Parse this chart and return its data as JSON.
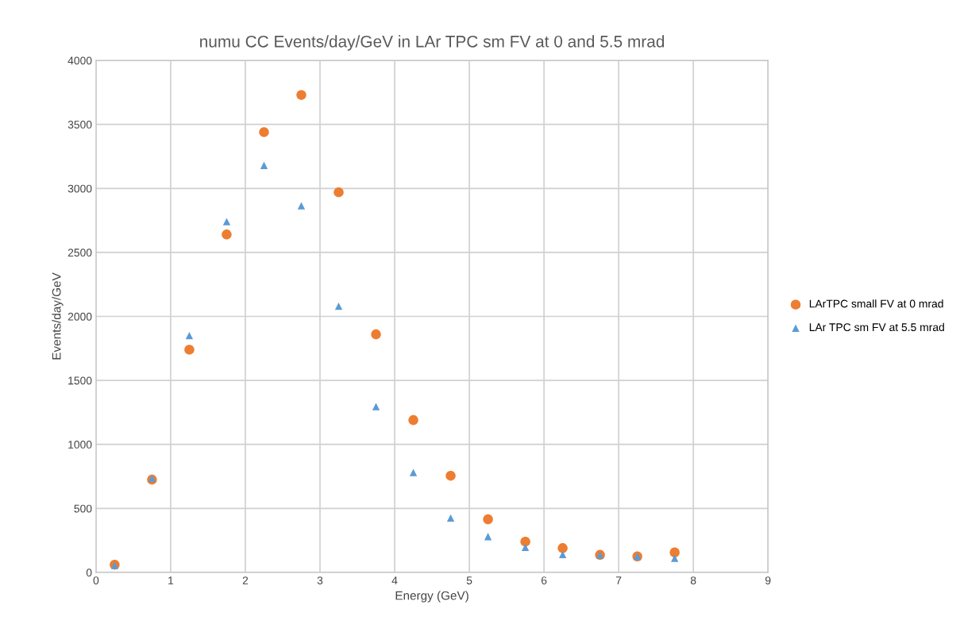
{
  "chart_data": {
    "type": "scatter",
    "title": "numu CC Events/day/GeV in LAr TPC sm FV at 0 and 5.5 mrad",
    "xlabel": "Energy (GeV)",
    "ylabel": "Events/day/GeV",
    "x": [
      0.25,
      0.75,
      1.25,
      1.75,
      2.25,
      2.75,
      3.25,
      3.75,
      4.25,
      4.75,
      5.25,
      5.75,
      6.25,
      6.75,
      7.25,
      7.75
    ],
    "series": [
      {
        "name": "LArTPC small FV at 0 mrad",
        "color": "#ed7d31",
        "marker": "circle",
        "values": [
          60,
          725,
          1740,
          2640,
          3440,
          3730,
          2970,
          1860,
          1190,
          755,
          415,
          240,
          190,
          137,
          125,
          156
        ]
      },
      {
        "name": "LAr TPC sm FV at 5.5 mrad",
        "color": "#5b9bd5",
        "marker": "triangle",
        "values": [
          55,
          735,
          1850,
          2740,
          3180,
          2865,
          2080,
          1295,
          780,
          425,
          280,
          195,
          140,
          135,
          125,
          110
        ]
      }
    ],
    "xlim": [
      0,
      9
    ],
    "xticks": [
      0,
      1,
      2,
      3,
      4,
      5,
      6,
      7,
      8,
      9
    ],
    "ylim": [
      0,
      4000
    ],
    "yticks": [
      0,
      500,
      1000,
      1500,
      2000,
      2500,
      3000,
      3500,
      4000
    ],
    "grid": true,
    "legend": "right"
  }
}
